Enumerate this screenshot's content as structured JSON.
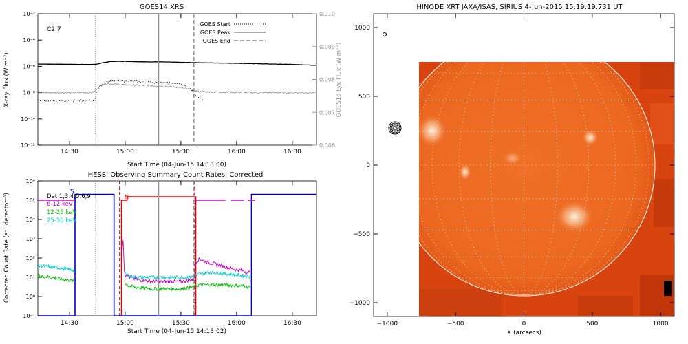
{
  "chart_data": [
    {
      "type": "line",
      "title": "GOES14 XRS",
      "xlabel": "Start Time (04-Jun-15 14:13:00)",
      "ylabel": "X-ray Flux (W m⁻²)",
      "y2label": "GOES15 Lyx Flux (W m⁻²)",
      "annotation": "C2.7",
      "x_ticks": [
        "14:30",
        "15:00",
        "15:30",
        "16:00",
        "16:30"
      ],
      "x_tick_minutes": [
        30,
        60,
        90,
        120,
        150
      ],
      "xlim_minutes_after_14h": [
        13,
        163
      ],
      "y_scale": "log",
      "ylim": [
        1e-12,
        0.01
      ],
      "y_ticks": [
        "10⁻¹²",
        "10⁻¹⁰",
        "10⁻⁸",
        "10⁻⁶",
        "10⁻⁴",
        "10⁻²"
      ],
      "y2lim": [
        0.006,
        0.01
      ],
      "y2_ticks": [
        "0.006",
        "0.007",
        "0.008",
        "0.009",
        "0.010"
      ],
      "legend": [
        "GOES Start",
        "GOES Peak",
        "GOES End"
      ],
      "legend_position": "top-right",
      "markers_minutes": {
        "start": 44,
        "peak": 78,
        "end": 97
      },
      "series": [
        {
          "name": "",
          "style": "black-solid",
          "x": [
            13,
            40,
            44,
            46,
            48,
            52,
            56,
            60,
            65,
            70,
            78,
            85,
            92,
            100,
            110,
            120,
            130,
            140,
            150,
            163
          ],
          "values": [
            1.5e-06,
            1.4e-06,
            1.4e-06,
            1.6e-06,
            1.9e-06,
            2.3e-06,
            2.4e-06,
            2.4e-06,
            2.3e-06,
            2.2e-06,
            2.2e-06,
            2.1e-06,
            2e-06,
            1.9e-06,
            1.8e-06,
            1.7e-06,
            1.6e-06,
            1.5e-06,
            1.4e-06,
            1.2e-06
          ]
        },
        {
          "name": "",
          "style": "gray-noisy",
          "x": [
            13,
            42,
            44,
            46,
            50,
            55,
            60,
            70,
            80,
            90,
            96,
            100,
            110,
            120,
            130,
            140,
            150,
            163
          ],
          "values": [
            1e-08,
            1e-08,
            1.3e-08,
            3e-08,
            5e-08,
            4.4e-08,
            4e-08,
            3.5e-08,
            3.2e-08,
            2.4e-08,
            1.6e-08,
            1.2e-08,
            1.1e-08,
            1.05e-08,
            1e-08,
            1e-08,
            1e-08,
            1e-08
          ]
        },
        {
          "name": "",
          "style": "black-dotted",
          "x": [
            13,
            43,
            44,
            46,
            50,
            55,
            60,
            65,
            70,
            80,
            90,
            95,
            98,
            100,
            102
          ],
          "values": [
            2.5e-09,
            2.5e-09,
            5e-09,
            2.5e-08,
            7e-08,
            8e-08,
            7.5e-08,
            7e-08,
            6.5e-08,
            5.8e-08,
            4.5e-08,
            2e-08,
            6e-09,
            4e-09,
            3e-09
          ]
        }
      ]
    },
    {
      "type": "line",
      "title": "HESSI Observing Summary Count Rates, Corrected",
      "xlabel": "Start Time (04-Jun-15 14:13:02)",
      "ylabel": "Corrected Count Rate (s⁻¹ detector⁻¹)",
      "x_ticks": [
        "14:30",
        "15:00",
        "15:30",
        "16:00",
        "16:30"
      ],
      "x_tick_minutes": [
        30,
        60,
        90,
        120,
        150
      ],
      "xlim_minutes_after_14h": [
        13,
        163
      ],
      "y_scale": "log",
      "ylim": [
        0.1,
        1000000.0
      ],
      "y_ticks": [
        "10⁻¹",
        "10⁰",
        "10¹",
        "10²",
        "10³",
        "10⁴",
        "10⁵",
        "10⁶"
      ],
      "legend": [
        "Det 1,3,4,5,6,9",
        "6-12 keV",
        "12-25 keV",
        "25-50 keV"
      ],
      "legend_colors": [
        "#000000",
        "#c000c0",
        "#00c000",
        "#00d0d0"
      ],
      "legend_position": "top-left",
      "flag_labels": [
        "S",
        "N"
      ],
      "markers_minutes": {
        "start": 44,
        "peak": 78,
        "end": 97
      },
      "series": [
        {
          "name": "6-12 keV",
          "color": "#c000c0",
          "segments": [
            {
              "x": [
                13,
                33
              ],
              "values": [
                100000.0,
                100000.0
              ]
            },
            {
              "x": [
                58,
                59,
                59.5,
                60,
                61,
                62,
                64,
                66,
                68,
                70,
                75,
                80,
                85,
                90,
                95,
                97,
                98,
                100,
                104,
                108,
                112,
                116,
                120,
                124,
                126,
                127,
                127.5
              ],
              "values": [
                200,
                800,
                30,
                12,
                15,
                10,
                9,
                8,
                7,
                7,
                6,
                6,
                6,
                6,
                7,
                8,
                60,
                90,
                60,
                50,
                40,
                30,
                25,
                22,
                15,
                25,
                20
              ]
            },
            {
              "x": [
                98,
                114
              ],
              "values": [
                100000.0,
                100000.0
              ]
            },
            {
              "x": [
                117,
                124
              ],
              "values": [
                100000.0,
                100000.0
              ]
            },
            {
              "x": [
                126,
                130
              ],
              "values": [
                100000.0,
                100000.0
              ]
            }
          ]
        },
        {
          "name": "12-25 keV",
          "color": "#00c000",
          "segments": [
            {
              "x": [
                13,
                20,
                25,
                30,
                33
              ],
              "values": [
                12,
                10,
                8,
                7,
                6
              ]
            },
            {
              "x": [
                60,
                62,
                66,
                70,
                75,
                80,
                85,
                90,
                95,
                98,
                100,
                106,
                112,
                118,
                124,
                127.5
              ],
              "values": [
                5,
                3.5,
                3,
                2.8,
                2.5,
                2.5,
                2.5,
                2.5,
                3,
                3.5,
                4,
                4.2,
                4,
                3.8,
                3.5,
                3
              ]
            }
          ]
        },
        {
          "name": "25-50 keV",
          "color": "#00d0d0",
          "segments": [
            {
              "x": [
                13,
                20,
                25,
                30,
                33
              ],
              "values": [
                40,
                35,
                30,
                25,
                22
              ]
            },
            {
              "x": [
                60,
                62,
                66,
                70,
                75,
                80,
                85,
                90,
                95,
                98,
                100,
                106,
                112,
                118,
                124,
                127.5
              ],
              "values": [
                15,
                12,
                10,
                10,
                10,
                10,
                10,
                10,
                10,
                12,
                15,
                18,
                16,
                14,
                12,
                11
              ]
            }
          ]
        }
      ],
      "state_lines": [
        {
          "color": "#0000c8",
          "x": [
            13,
            33,
            33,
            54,
            54,
            60,
            60,
            128,
            128,
            163
          ],
          "values": [
            0.1,
            0.1,
            200000.0,
            200000.0,
            0.1,
            0.1,
            0.1,
            0.1,
            200000.0,
            200000.0
          ]
        },
        {
          "color": "#e00000",
          "x": [
            58,
            58,
            61,
            61,
            98,
            98
          ],
          "values": [
            0.1,
            100000.0,
            100000.0,
            150000.0,
            150000.0,
            0.1
          ]
        }
      ]
    },
    {
      "type": "image",
      "title": "HINODE XRT JAXA/ISAS, SIRIUS  4-Jun-2015 15:19:19.731 UT",
      "xlabel": "X (arcsecs)",
      "x_ticks": [
        "−1000",
        "−500",
        "0",
        "500",
        "1000"
      ],
      "y_ticks": [
        "−1000",
        "−500",
        "0",
        "500",
        "1000"
      ],
      "xlim": [
        -1100,
        1100
      ],
      "ylim": [
        -1100,
        1100
      ],
      "image_extent": {
        "x": [
          -750,
          1100
        ],
        "y": [
          -1100,
          740
        ]
      },
      "limb_radius": 950,
      "grid": true,
      "contour_center": [
        -940,
        260
      ],
      "colormap": "orange-red"
    }
  ]
}
